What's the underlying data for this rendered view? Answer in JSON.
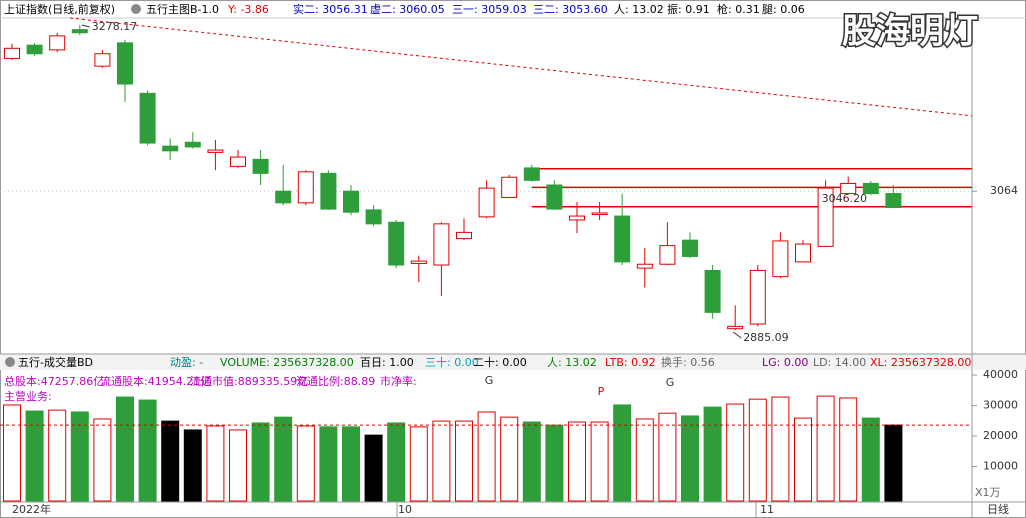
{
  "header": {
    "title": "上证指数(日线,前复权)",
    "indicator": "五行主图B-1.0",
    "y_value": "Y: -3.86",
    "items": [
      "实二: 3056.31",
      "虚二: 3060.05",
      "三一: 3059.03",
      "三二: 3053.60",
      "人: 13.02",
      "振: 0.91",
      "枪: 0.31",
      "腿: 0.06"
    ]
  },
  "watermark": "股海明灯",
  "chart_data": {
    "type": "candlestick",
    "ylim": [
      2857,
      3287
    ],
    "yticks": [
      3064
    ],
    "open": [
      3235,
      3252,
      3246,
      3272,
      3225,
      3255,
      3190,
      3122,
      3127,
      3114,
      3096,
      3105,
      3064,
      3049,
      3087,
      3064,
      3040,
      3024,
      2971,
      2969,
      3003,
      3031,
      3056,
      3094,
      3072,
      3027,
      3034,
      3032,
      2965,
      2970,
      3001,
      2962,
      2887,
      2893,
      2954,
      2973,
      2993,
      3061,
      3074,
      3061
    ],
    "high": [
      3254,
      3255,
      3268,
      3278.17,
      3246,
      3259,
      3194,
      3132,
      3140,
      3130,
      3117,
      3117,
      3098,
      3091,
      3091,
      3072,
      3046,
      3027,
      2981,
      3024,
      3029,
      3078,
      3085,
      3098,
      3078,
      3050,
      3050,
      3061,
      2991,
      3024,
      3011,
      2969,
      2917,
      2969,
      3011,
      3001,
      3078,
      3083,
      3077,
      3072
    ],
    "low": [
      3233,
      3238,
      3243,
      3265,
      3223,
      3179,
      3123,
      3104,
      3119,
      3091,
      3094,
      3072,
      3046,
      3046,
      3040,
      3033,
      3019,
      2965,
      2947,
      2929,
      3001,
      3029,
      3055,
      3076,
      3040,
      3010,
      3027,
      2969,
      2940,
      2969,
      2978,
      2900,
      2885.09,
      2890,
      2952,
      2973,
      2992,
      3060,
      3059,
      3042
    ],
    "close": [
      3248,
      3241,
      3264,
      3268,
      3241,
      3202,
      3126,
      3116,
      3121,
      3117,
      3108,
      3087,
      3049,
      3089,
      3041,
      3037,
      3022,
      2969,
      2974,
      3022,
      3011,
      3068,
      3082,
      3078,
      3041,
      3032,
      3036,
      2973,
      2970,
      2994,
      2980,
      2908,
      2890,
      2962,
      3000,
      2996,
      3068,
      3074,
      3061,
      3043
    ],
    "up_color": "#e00000",
    "down_color": "#2e9e3a",
    "levels": [
      3093,
      3069,
      3044
    ],
    "level_color": "#e00000",
    "trendline": [
      3287,
      3161
    ],
    "annotations": [
      "3278.17",
      "2885.09",
      "3046.20"
    ],
    "volume": {
      "title": "五行-成交量BD",
      "items": [
        "动盈: -",
        "VOLUME: 235637328.00",
        "百日: 1.00",
        "三十: 0.00",
        "二十: 0.00",
        "人: 13.02",
        "LTB: 0.92",
        "换手: 0.56",
        "LG: 0.00",
        "LD: 14.00",
        "XL: 235637328.00"
      ],
      "info": [
        "总股本:47257.86亿",
        "流通股本:41954.21亿",
        "流通市值:889335.59亿",
        "流通比例:88.89",
        "市净率:",
        "主营业务:"
      ],
      "signals": [
        "G",
        "P",
        "G"
      ],
      "ylim": [
        0,
        42000
      ],
      "yticks": [
        10000,
        20000,
        30000,
        40000
      ],
      "unit": "X1万",
      "values": [
        30200,
        28200,
        28500,
        27900,
        25600,
        32800,
        31800,
        24900,
        22000,
        23300,
        22000,
        24300,
        26200,
        23300,
        23000,
        23000,
        20300,
        24300,
        23000,
        24900,
        24900,
        27900,
        26200,
        24600,
        23600,
        24600,
        24600,
        30200,
        25600,
        27500,
        26600,
        29500,
        30500,
        32100,
        32800,
        25900,
        33100,
        32500,
        25900,
        23600
      ],
      "colors": [
        "red",
        "green",
        "red",
        "green",
        "red",
        "green",
        "green",
        "black",
        "black",
        "red",
        "red",
        "green",
        "green",
        "red",
        "green",
        "green",
        "black",
        "green",
        "red",
        "red",
        "red",
        "red",
        "red",
        "green",
        "green",
        "red",
        "red",
        "green",
        "red",
        "red",
        "green",
        "green",
        "red",
        "red",
        "red",
        "red",
        "red",
        "red",
        "green",
        "black"
      ],
      "ma": 23600
    },
    "x_labels": [
      "2022年",
      "10",
      "11"
    ],
    "period": "日线"
  }
}
